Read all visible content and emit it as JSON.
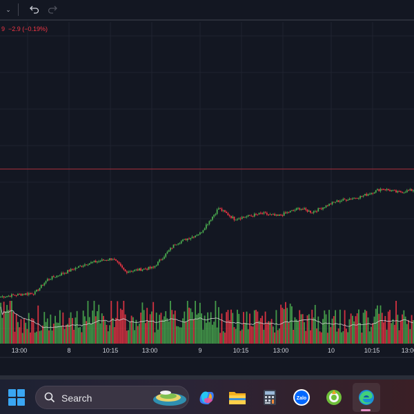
{
  "toolbar": {
    "dropdown_icon": "chevron-down-icon",
    "undo_icon": "undo-icon",
    "redo_icon": "redo-icon"
  },
  "legend": {
    "text": "9  −2.9 (−0.19%)"
  },
  "colors": {
    "background": "#131722",
    "up": "#4caf50",
    "down": "#f23645",
    "ma_line": "#d9d9d9",
    "grid": "#1f2330",
    "price_line": "#b0303d"
  },
  "chart_data": {
    "type": "candlestick",
    "session_labels": [
      "13:00",
      "8",
      "10:15",
      "13:00",
      "9",
      "10:15",
      "13:00",
      "10",
      "10:15",
      "13:00"
    ],
    "price_segments": [
      {
        "from": 0,
        "to": 22,
        "start": 28,
        "end": 31
      },
      {
        "from": 22,
        "to": 30,
        "start": 31,
        "end": 41
      },
      {
        "from": 30,
        "to": 55,
        "start": 41,
        "end": 53
      },
      {
        "from": 55,
        "to": 72,
        "start": 53,
        "end": 57
      },
      {
        "from": 72,
        "to": 80,
        "start": 57,
        "end": 47
      },
      {
        "from": 80,
        "to": 98,
        "start": 47,
        "end": 50
      },
      {
        "from": 98,
        "to": 112,
        "start": 50,
        "end": 68
      },
      {
        "from": 112,
        "to": 128,
        "start": 68,
        "end": 76
      },
      {
        "from": 128,
        "to": 140,
        "start": 76,
        "end": 95
      },
      {
        "from": 140,
        "to": 150,
        "start": 95,
        "end": 87
      },
      {
        "from": 150,
        "to": 168,
        "start": 87,
        "end": 91
      },
      {
        "from": 168,
        "to": 178,
        "start": 91,
        "end": 89
      },
      {
        "from": 178,
        "to": 192,
        "start": 89,
        "end": 95
      },
      {
        "from": 192,
        "to": 200,
        "start": 95,
        "end": 92
      },
      {
        "from": 200,
        "to": 215,
        "start": 92,
        "end": 100
      },
      {
        "from": 215,
        "to": 232,
        "start": 100,
        "end": 104
      },
      {
        "from": 232,
        "to": 245,
        "start": 104,
        "end": 110
      },
      {
        "from": 245,
        "to": 255,
        "start": 110,
        "end": 107
      },
      {
        "from": 255,
        "to": 266,
        "start": 107,
        "end": 109
      }
    ],
    "candle_count": 266,
    "current_price_marker": true
  },
  "taskbar": {
    "start_icon": "windows-start-icon",
    "search_label": "Search",
    "apps": [
      {
        "name": "copilot",
        "icon": "copilot-icon"
      },
      {
        "name": "file-explorer",
        "icon": "folder-icon"
      },
      {
        "name": "calculator",
        "icon": "calculator-icon"
      },
      {
        "name": "zalo",
        "icon": "zalo-icon",
        "label": "Zalo"
      },
      {
        "name": "coccoc",
        "icon": "coccoc-icon"
      },
      {
        "name": "edge",
        "icon": "edge-icon"
      }
    ]
  }
}
